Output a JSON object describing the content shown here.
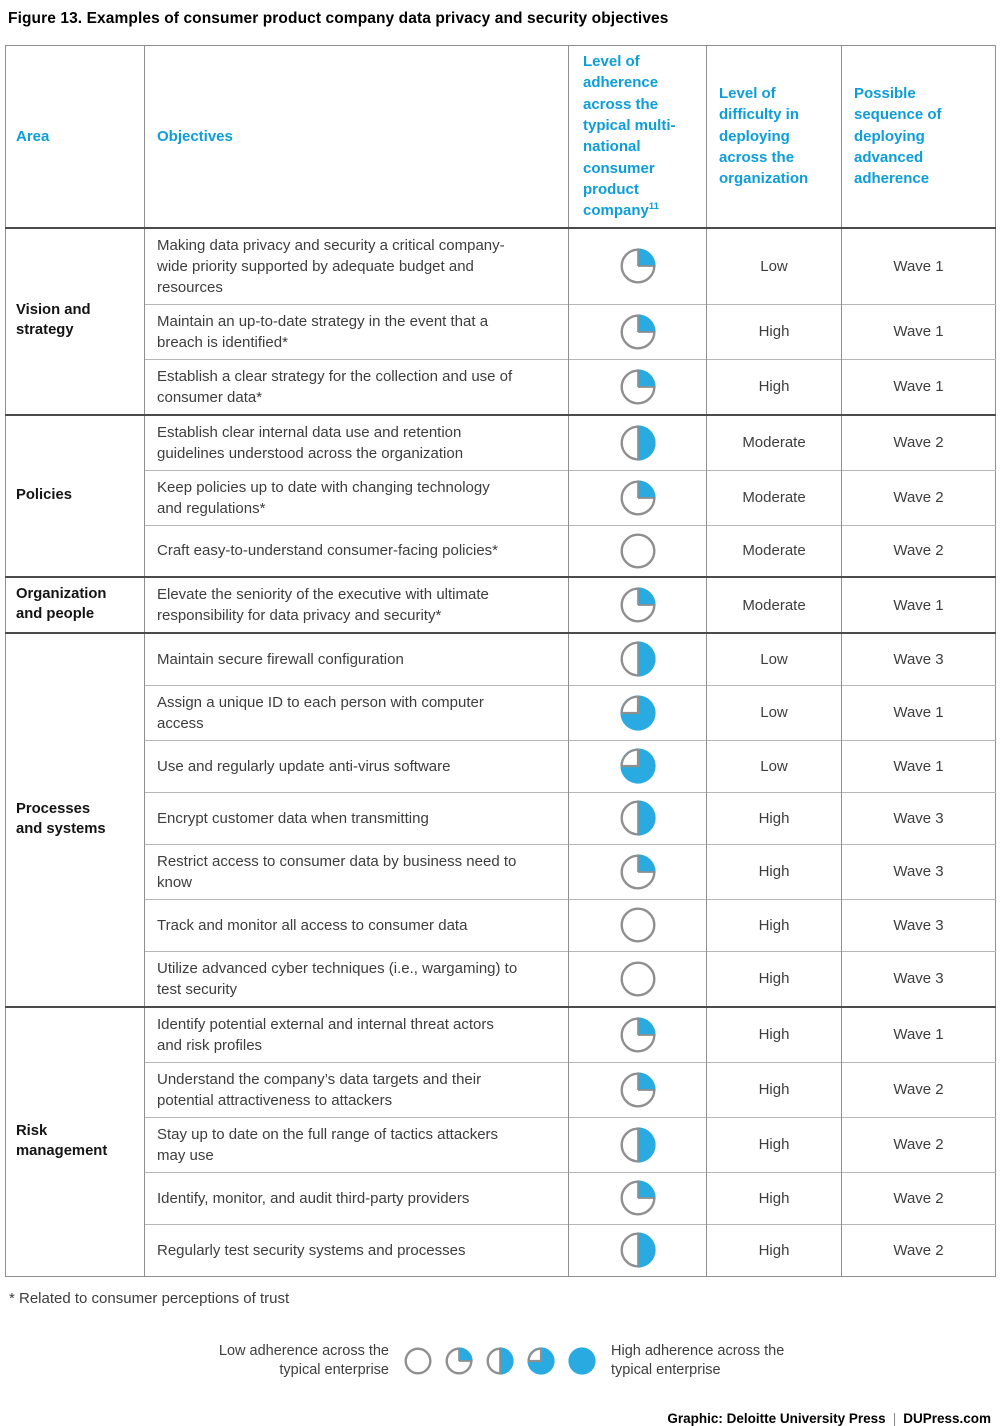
{
  "figure": {
    "title": "Figure 13. Examples of consumer product company data privacy and security objectives",
    "footnote": "* Related to consumer perceptions of trust",
    "credit": {
      "label": "Graphic: Deloitte University Press",
      "separator": "|",
      "site": "DUPress.com"
    }
  },
  "colors": {
    "header_blue": "#0d9dd9",
    "ball_fill": "#29abe2",
    "ball_ring": "#8f8f8f",
    "thick_rule": "#4b4b4b"
  },
  "legend": {
    "low_label": "Low adherence across the typical enterprise",
    "high_label": "High adherence across the typical enterprise",
    "scale_quarters": [
      0,
      1,
      2,
      3,
      4
    ]
  },
  "chart_data": {
    "type": "table",
    "title": "Figure 13. Examples of consumer product company data privacy and security objectives",
    "adherence_units": "quarters filled of 4 (0 = low adherence, 4 = high adherence across the typical enterprise)",
    "columns": [
      {
        "label": "Area"
      },
      {
        "label": "Objectives"
      },
      {
        "label": "Level of adherence across the typical multi-national consumer product company",
        "sup": "11"
      },
      {
        "label": "Level of difficulty in deploying across the organization"
      },
      {
        "label": "Possible sequence of deploying advanced adherence"
      }
    ],
    "groups": [
      {
        "area": "Vision and strategy",
        "rows": [
          {
            "objective": "Making data privacy and security a critical company-wide priority supported by adequate budget and resources",
            "adherence_quarters": 1,
            "difficulty": "Low",
            "wave": "Wave 1"
          },
          {
            "objective": "Maintain an up-to-date strategy in the event that a breach is identified*",
            "adherence_quarters": 1,
            "difficulty": "High",
            "wave": "Wave 1"
          },
          {
            "objective": "Establish a clear strategy for the collection and use of consumer data*",
            "adherence_quarters": 1,
            "difficulty": "High",
            "wave": "Wave 1"
          }
        ]
      },
      {
        "area": "Policies",
        "rows": [
          {
            "objective": "Establish clear internal data use and retention guidelines understood across the organization",
            "adherence_quarters": 2,
            "difficulty": "Moderate",
            "wave": "Wave 2"
          },
          {
            "objective": "Keep policies up to date with changing technology and regulations*",
            "adherence_quarters": 1,
            "difficulty": "Moderate",
            "wave": "Wave 2"
          },
          {
            "objective": "Craft easy-to-understand consumer-facing policies*",
            "adherence_quarters": 0,
            "difficulty": "Moderate",
            "wave": "Wave 2"
          }
        ]
      },
      {
        "area": "Organization and people",
        "rows": [
          {
            "objective": "Elevate the seniority of the executive with ultimate responsibility for data privacy and security*",
            "adherence_quarters": 1,
            "difficulty": "Moderate",
            "wave": "Wave 1"
          }
        ]
      },
      {
        "area": "Processes and systems",
        "rows": [
          {
            "objective": "Maintain secure firewall configuration",
            "adherence_quarters": 2,
            "difficulty": "Low",
            "wave": "Wave 3"
          },
          {
            "objective": "Assign a unique ID to each person with computer access",
            "adherence_quarters": 3,
            "difficulty": "Low",
            "wave": "Wave 1"
          },
          {
            "objective": "Use and regularly update anti-virus software",
            "adherence_quarters": 3,
            "difficulty": "Low",
            "wave": "Wave 1"
          },
          {
            "objective": "Encrypt customer data when transmitting",
            "adherence_quarters": 2,
            "difficulty": "High",
            "wave": "Wave 3"
          },
          {
            "objective": "Restrict access to consumer data by business need to know",
            "adherence_quarters": 1,
            "difficulty": "High",
            "wave": "Wave 3"
          },
          {
            "objective": "Track and monitor all access to consumer data",
            "adherence_quarters": 0,
            "difficulty": "High",
            "wave": "Wave 3"
          },
          {
            "objective": "Utilize advanced cyber techniques (i.e., wargaming) to test security",
            "adherence_quarters": 0,
            "difficulty": "High",
            "wave": "Wave 3"
          }
        ]
      },
      {
        "area": "Risk management",
        "rows": [
          {
            "objective": "Identify potential external and internal threat actors and risk profiles",
            "adherence_quarters": 1,
            "difficulty": "High",
            "wave": "Wave 1"
          },
          {
            "objective": "Understand the company’s data targets and their potential attractiveness to attackers",
            "adherence_quarters": 1,
            "difficulty": "High",
            "wave": "Wave 2"
          },
          {
            "objective": "Stay up to date on the full range of tactics attackers may use",
            "adherence_quarters": 2,
            "difficulty": "High",
            "wave": "Wave 2"
          },
          {
            "objective": "Identify, monitor, and audit third-party providers",
            "adherence_quarters": 1,
            "difficulty": "High",
            "wave": "Wave 2"
          },
          {
            "objective": "Regularly test security systems and processes",
            "adherence_quarters": 2,
            "difficulty": "High",
            "wave": "Wave 2"
          }
        ]
      }
    ]
  }
}
